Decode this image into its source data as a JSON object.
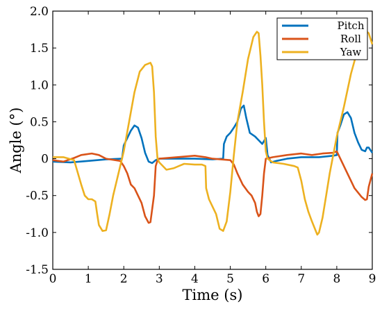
{
  "chart_data": {
    "type": "line",
    "title": "",
    "xlabel": "Time (s)",
    "ylabel": "Angle (°)",
    "xlim": [
      0,
      9
    ],
    "ylim": [
      -1.5,
      2.0
    ],
    "grid": false,
    "legend_position": "top-right",
    "x_ticks": [
      "0",
      "1",
      "2",
      "3",
      "4",
      "5",
      "6",
      "7",
      "8",
      "9"
    ],
    "y_ticks": [
      "-1.5",
      "-1.0",
      "-0.5",
      "0",
      "0.5",
      "1.0",
      "1.5",
      "2.0"
    ],
    "series": [
      {
        "name": "Pitch",
        "color": "#0072BD",
        "points": [
          [
            0,
            -0.04
          ],
          [
            0.5,
            -0.05
          ],
          [
            1,
            -0.03
          ],
          [
            1.5,
            -0.01
          ],
          [
            1.95,
            0.0
          ],
          [
            2.0,
            0.18
          ],
          [
            2.1,
            0.28
          ],
          [
            2.2,
            0.38
          ],
          [
            2.3,
            0.45
          ],
          [
            2.4,
            0.42
          ],
          [
            2.5,
            0.28
          ],
          [
            2.6,
            0.08
          ],
          [
            2.7,
            -0.04
          ],
          [
            2.8,
            -0.06
          ],
          [
            2.9,
            -0.02
          ],
          [
            3.0,
            0.0
          ],
          [
            3.5,
            0.0
          ],
          [
            4.0,
            0.0
          ],
          [
            4.5,
            -0.01
          ],
          [
            4.8,
            0.0
          ],
          [
            4.82,
            0.2
          ],
          [
            4.9,
            0.3
          ],
          [
            5.0,
            0.35
          ],
          [
            5.1,
            0.42
          ],
          [
            5.2,
            0.5
          ],
          [
            5.3,
            0.68
          ],
          [
            5.38,
            0.72
          ],
          [
            5.45,
            0.55
          ],
          [
            5.55,
            0.35
          ],
          [
            5.7,
            0.3
          ],
          [
            5.8,
            0.25
          ],
          [
            5.9,
            0.2
          ],
          [
            6.0,
            0.28
          ],
          [
            6.05,
            0.05
          ],
          [
            6.15,
            -0.05
          ],
          [
            6.3,
            -0.03
          ],
          [
            6.6,
            0.0
          ],
          [
            7.0,
            0.02
          ],
          [
            7.5,
            0.02
          ],
          [
            7.9,
            0.04
          ],
          [
            8.0,
            0.05
          ],
          [
            8.02,
            0.35
          ],
          [
            8.1,
            0.45
          ],
          [
            8.2,
            0.6
          ],
          [
            8.3,
            0.63
          ],
          [
            8.4,
            0.55
          ],
          [
            8.5,
            0.35
          ],
          [
            8.6,
            0.22
          ],
          [
            8.7,
            0.12
          ],
          [
            8.8,
            0.1
          ],
          [
            8.85,
            0.15
          ],
          [
            8.9,
            0.15
          ],
          [
            9.0,
            0.08
          ]
        ]
      },
      {
        "name": "Roll",
        "color": "#D95319",
        "points": [
          [
            0,
            -0.02
          ],
          [
            0.3,
            -0.04
          ],
          [
            0.6,
            0.01
          ],
          [
            0.8,
            0.05
          ],
          [
            1.1,
            0.07
          ],
          [
            1.3,
            0.05
          ],
          [
            1.5,
            0.0
          ],
          [
            1.9,
            -0.03
          ],
          [
            2.0,
            -0.1
          ],
          [
            2.1,
            -0.2
          ],
          [
            2.2,
            -0.35
          ],
          [
            2.3,
            -0.4
          ],
          [
            2.4,
            -0.5
          ],
          [
            2.5,
            -0.6
          ],
          [
            2.6,
            -0.78
          ],
          [
            2.7,
            -0.87
          ],
          [
            2.75,
            -0.86
          ],
          [
            2.85,
            -0.5
          ],
          [
            2.9,
            -0.1
          ],
          [
            2.95,
            -0.02
          ],
          [
            3.0,
            0.0
          ],
          [
            3.5,
            0.02
          ],
          [
            4.0,
            0.04
          ],
          [
            4.3,
            0.02
          ],
          [
            4.5,
            0.0
          ],
          [
            5.0,
            -0.02
          ],
          [
            5.1,
            -0.08
          ],
          [
            5.2,
            -0.2
          ],
          [
            5.35,
            -0.35
          ],
          [
            5.5,
            -0.45
          ],
          [
            5.6,
            -0.5
          ],
          [
            5.7,
            -0.6
          ],
          [
            5.75,
            -0.72
          ],
          [
            5.8,
            -0.78
          ],
          [
            5.85,
            -0.75
          ],
          [
            5.9,
            -0.5
          ],
          [
            5.95,
            -0.2
          ],
          [
            6.0,
            0.0
          ],
          [
            6.2,
            0.02
          ],
          [
            6.6,
            0.05
          ],
          [
            7.0,
            0.07
          ],
          [
            7.3,
            0.05
          ],
          [
            7.6,
            0.07
          ],
          [
            7.9,
            0.08
          ],
          [
            8.0,
            0.1
          ],
          [
            8.1,
            0.0
          ],
          [
            8.3,
            -0.2
          ],
          [
            8.5,
            -0.4
          ],
          [
            8.7,
            -0.52
          ],
          [
            8.8,
            -0.56
          ],
          [
            8.85,
            -0.55
          ],
          [
            8.9,
            -0.38
          ],
          [
            9.0,
            -0.2
          ]
        ]
      },
      {
        "name": "Yaw",
        "color": "#EDB120",
        "points": [
          [
            0,
            0.02
          ],
          [
            0.3,
            0.02
          ],
          [
            0.6,
            -0.02
          ],
          [
            0.8,
            -0.35
          ],
          [
            0.9,
            -0.5
          ],
          [
            1.0,
            -0.55
          ],
          [
            1.1,
            -0.55
          ],
          [
            1.2,
            -0.58
          ],
          [
            1.25,
            -0.75
          ],
          [
            1.3,
            -0.9
          ],
          [
            1.4,
            -0.98
          ],
          [
            1.5,
            -0.97
          ],
          [
            1.6,
            -0.75
          ],
          [
            1.7,
            -0.5
          ],
          [
            1.8,
            -0.3
          ],
          [
            1.9,
            -0.1
          ],
          [
            2.0,
            0.1
          ],
          [
            2.15,
            0.5
          ],
          [
            2.3,
            0.9
          ],
          [
            2.45,
            1.18
          ],
          [
            2.6,
            1.27
          ],
          [
            2.75,
            1.3
          ],
          [
            2.8,
            1.25
          ],
          [
            2.85,
            0.9
          ],
          [
            2.9,
            0.3
          ],
          [
            2.95,
            0.0
          ],
          [
            3.0,
            -0.05
          ],
          [
            3.2,
            -0.15
          ],
          [
            3.4,
            -0.13
          ],
          [
            3.7,
            -0.07
          ],
          [
            4.0,
            -0.08
          ],
          [
            4.2,
            -0.08
          ],
          [
            4.3,
            -0.1
          ],
          [
            4.32,
            -0.4
          ],
          [
            4.4,
            -0.55
          ],
          [
            4.5,
            -0.65
          ],
          [
            4.6,
            -0.75
          ],
          [
            4.7,
            -0.95
          ],
          [
            4.8,
            -0.98
          ],
          [
            4.9,
            -0.85
          ],
          [
            5.0,
            -0.45
          ],
          [
            5.1,
            0.05
          ],
          [
            5.2,
            0.5
          ],
          [
            5.35,
            0.9
          ],
          [
            5.5,
            1.35
          ],
          [
            5.65,
            1.65
          ],
          [
            5.75,
            1.72
          ],
          [
            5.8,
            1.7
          ],
          [
            5.85,
            1.4
          ],
          [
            5.9,
            1.0
          ],
          [
            5.95,
            0.5
          ],
          [
            6.0,
            0.1
          ],
          [
            6.05,
            0.0
          ],
          [
            6.2,
            -0.05
          ],
          [
            6.5,
            -0.07
          ],
          [
            6.8,
            -0.1
          ],
          [
            6.9,
            -0.12
          ],
          [
            7.0,
            -0.3
          ],
          [
            7.1,
            -0.55
          ],
          [
            7.2,
            -0.72
          ],
          [
            7.3,
            -0.85
          ],
          [
            7.45,
            -1.03
          ],
          [
            7.5,
            -1.0
          ],
          [
            7.6,
            -0.8
          ],
          [
            7.7,
            -0.5
          ],
          [
            7.8,
            -0.2
          ],
          [
            7.9,
            0.05
          ],
          [
            8.0,
            0.3
          ],
          [
            8.2,
            0.7
          ],
          [
            8.4,
            1.15
          ],
          [
            8.6,
            1.5
          ],
          [
            8.75,
            1.68
          ],
          [
            8.85,
            1.72
          ],
          [
            8.9,
            1.7
          ],
          [
            9.0,
            1.55
          ]
        ]
      }
    ]
  }
}
